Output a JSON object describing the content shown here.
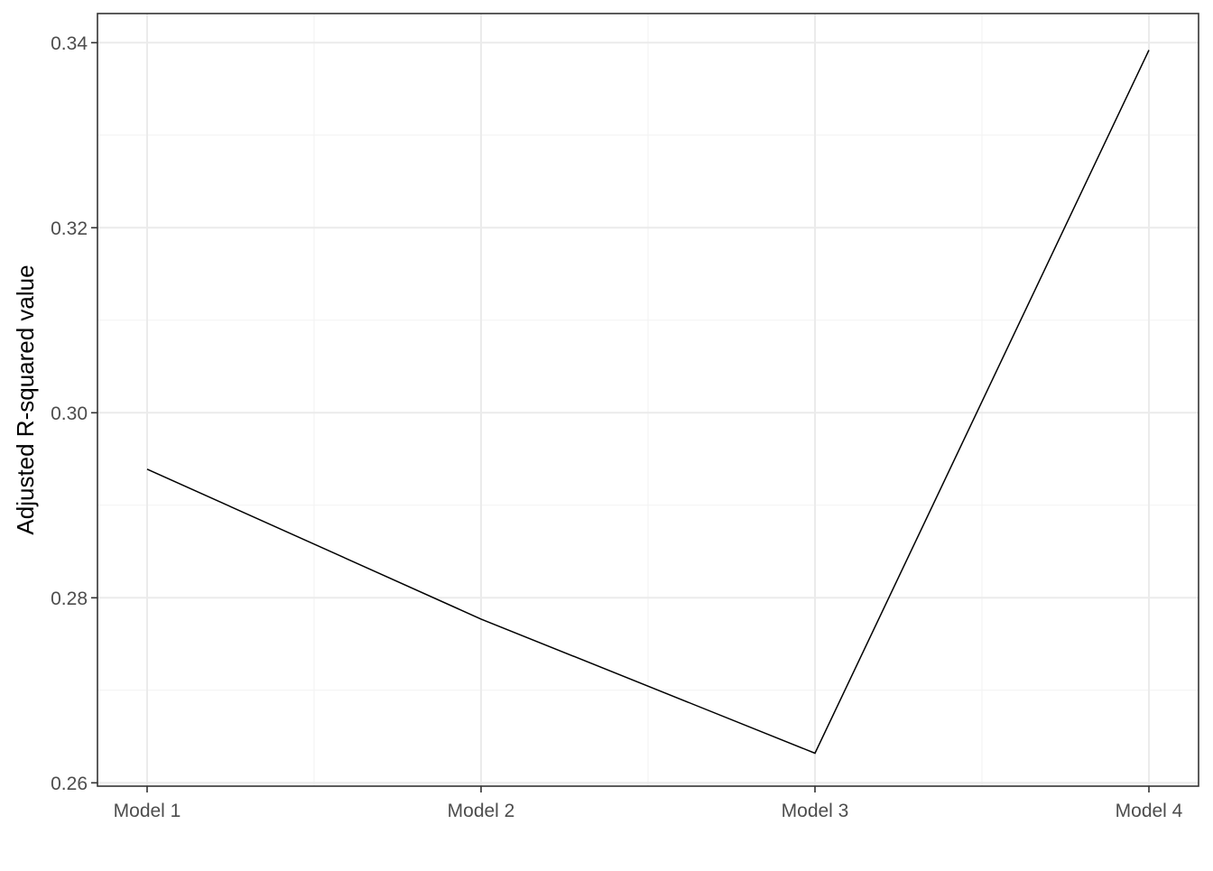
{
  "chart_data": {
    "type": "line",
    "categories": [
      "Model 1",
      "Model 2",
      "Model 3",
      "Model 4"
    ],
    "values": [
      0.2939,
      0.2777,
      0.2632,
      0.3392
    ],
    "title": "",
    "xlabel": "",
    "ylabel": "Adjusted R-squared value",
    "ylim": [
      0.26,
      0.34
    ],
    "yticks": [
      0.26,
      0.28,
      0.3,
      0.32,
      0.34
    ],
    "ytick_labels": [
      "0.26",
      "0.28",
      "0.30",
      "0.32",
      "0.34"
    ],
    "grid": true,
    "legend": "none",
    "line_color": "#000000"
  }
}
